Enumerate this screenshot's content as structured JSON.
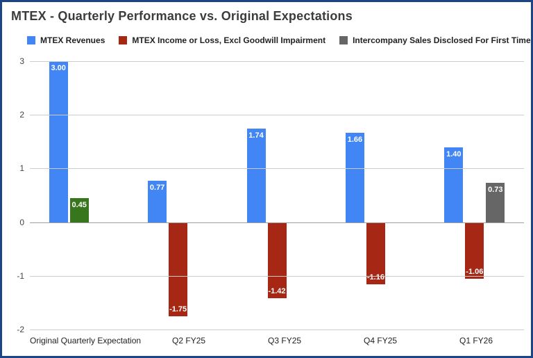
{
  "frame": {
    "border_color": "#1c4587",
    "background": "#ffffff"
  },
  "chart_data": {
    "type": "bar",
    "title": "MTEX - Quarterly Performance vs. Original Expectations",
    "categories": [
      "Original Quarterly Expectation",
      "Q2 FY25",
      "Q3 FY25",
      "Q4 FY25",
      "Q1 FY26"
    ],
    "series": [
      {
        "name": "MTEX Revenues",
        "color": "#4285f4",
        "values": [
          3.0,
          0.77,
          1.74,
          1.66,
          1.4
        ]
      },
      {
        "name": "MTEX Income or Loss, Excl Goodwill Impairment",
        "color": "#a52714",
        "values": [
          0.45,
          -1.75,
          -1.42,
          -1.16,
          -1.06
        ],
        "point_colors": {
          "0": "#38761d"
        }
      },
      {
        "name": "Intercompany Sales Disclosed For First Time - ?????",
        "color": "#666666",
        "values": [
          null,
          null,
          null,
          null,
          0.73
        ]
      }
    ],
    "data_labels": true,
    "data_label_color": "#ffffff",
    "data_label_format": "0.00",
    "y_ticks": [
      3,
      2,
      1,
      0,
      -1,
      -2
    ],
    "ylim": [
      -2,
      3
    ],
    "grid": true,
    "gridline_color": "#cccccc",
    "baseline_color": "#9e9e9e",
    "legend_position": "top",
    "axis_tick_color": "#444444",
    "category_label_color": "#222222"
  }
}
